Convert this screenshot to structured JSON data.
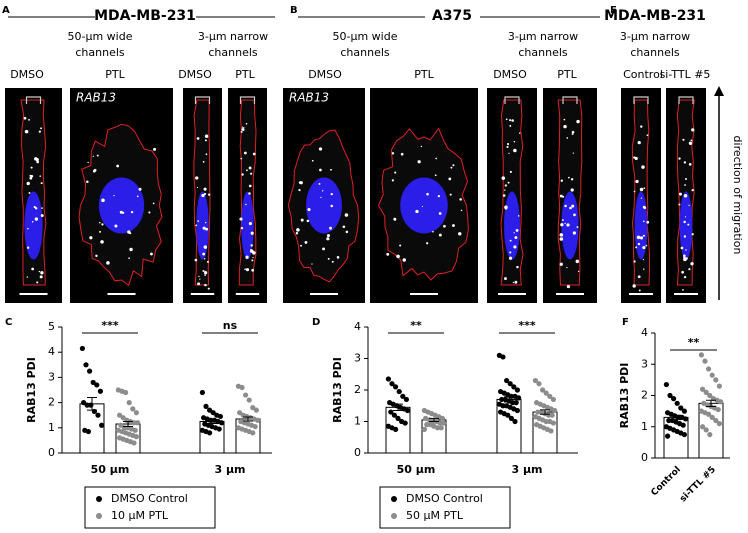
{
  "panels": [
    {
      "letter": "A",
      "title": "MDA-MB-231",
      "gene": "RAB13",
      "subtitles": [
        [
          "50-µm wide",
          "channels"
        ],
        [
          "3-µm narrow",
          "channels"
        ]
      ],
      "labels": [
        "DMSO",
        "PTL",
        "DMSO",
        "PTL"
      ]
    },
    {
      "letter": "B",
      "title": "A375",
      "gene": "RAB13",
      "subtitles": [
        [
          "50-µm wide",
          "channels"
        ],
        [
          "3-µm narrow",
          "channels"
        ]
      ],
      "labels": [
        "DMSO",
        "PTL",
        "DMSO",
        "PTL"
      ]
    },
    {
      "letter": "E",
      "title": "MDA-MB-231",
      "subtitles": [
        [
          "3-µm narrow",
          "channels"
        ]
      ],
      "labels": [
        "Control",
        "si-TTL #5"
      ],
      "arrow_label": "direction of migration"
    }
  ],
  "chart_data": [
    {
      "type": "bar",
      "letter": "C",
      "ylabel": "RAB13 PDI",
      "categories": [
        "50 µm",
        "3 µm"
      ],
      "ylim": [
        0,
        5
      ],
      "yticks": [
        0,
        1,
        2,
        3,
        4,
        5
      ],
      "significance": [
        "***",
        "ns"
      ],
      "series": [
        {
          "name": "DMSO Control",
          "color": "#000000",
          "values": [
            1.95,
            1.25
          ],
          "errors": [
            0.25,
            0.08
          ],
          "points": [
            [
              4.15,
              3.5,
              3.25,
              2.8,
              2.7,
              2.45,
              2.0,
              1.9,
              1.9,
              1.65,
              1.5,
              1.1,
              0.9,
              0.85
            ],
            [
              2.4,
              1.85,
              1.7,
              1.6,
              1.5,
              1.45,
              1.4,
              1.35,
              1.3,
              1.3,
              1.25,
              1.2,
              1.15,
              1.1,
              1.05,
              1.0,
              0.95,
              0.9,
              0.85,
              0.8
            ]
          ]
        },
        {
          "name": "10 µM PTL",
          "color": "#8c8c8c",
          "values": [
            1.15,
            1.35
          ],
          "errors": [
            0.1,
            0.08
          ],
          "points": [
            [
              2.5,
              2.45,
              2.4,
              2.0,
              1.75,
              1.6,
              1.5,
              1.4,
              1.3,
              1.25,
              1.2,
              1.2,
              1.1,
              1.0,
              1.0,
              0.95,
              0.9,
              0.9,
              0.85,
              0.8,
              0.75,
              0.7,
              0.65,
              0.6,
              0.55,
              0.5,
              0.45,
              0.4
            ],
            [
              2.65,
              2.6,
              2.3,
              2.1,
              1.8,
              1.7,
              1.6,
              1.5,
              1.45,
              1.4,
              1.35,
              1.3,
              1.25,
              1.2,
              1.15,
              1.1,
              1.05,
              1.0,
              0.95,
              0.9,
              0.85,
              0.8
            ]
          ]
        }
      ]
    },
    {
      "type": "bar",
      "letter": "D",
      "ylabel": "RAB13 PDI",
      "categories": [
        "50 µm",
        "3 µm"
      ],
      "ylim": [
        0,
        4
      ],
      "yticks": [
        0,
        1,
        2,
        3,
        4
      ],
      "significance": [
        "**",
        "***"
      ],
      "series": [
        {
          "name": "DMSO Control",
          "color": "#000000",
          "values": [
            1.45,
            1.7
          ],
          "errors": [
            0.1,
            0.08
          ],
          "points": [
            [
              2.35,
              2.2,
              2.1,
              1.95,
              1.8,
              1.7,
              1.6,
              1.55,
              1.5,
              1.45,
              1.4,
              1.35,
              1.3,
              1.2,
              1.1,
              1.0,
              0.95,
              0.85,
              0.8,
              0.75
            ],
            [
              3.1,
              3.05,
              2.3,
              2.2,
              2.1,
              2.0,
              1.95,
              1.9,
              1.85,
              1.8,
              1.8,
              1.75,
              1.7,
              1.7,
              1.65,
              1.6,
              1.6,
              1.55,
              1.5,
              1.5,
              1.45,
              1.4,
              1.35,
              1.3,
              1.25,
              1.2,
              1.1,
              1.0
            ]
          ]
        },
        {
          "name": "50 µM PTL",
          "color": "#8c8c8c",
          "values": [
            1.05,
            1.3
          ],
          "errors": [
            0.05,
            0.07
          ],
          "points": [
            [
              1.35,
              1.3,
              1.25,
              1.2,
              1.15,
              1.1,
              1.1,
              1.05,
              1.0,
              1.0,
              0.95,
              0.95,
              0.9,
              0.9,
              0.85,
              0.8,
              0.8,
              0.75
            ],
            [
              2.3,
              2.2,
              2.0,
              1.9,
              1.8,
              1.7,
              1.6,
              1.55,
              1.5,
              1.45,
              1.4,
              1.35,
              1.3,
              1.3,
              1.25,
              1.2,
              1.2,
              1.15,
              1.1,
              1.05,
              1.0,
              1.0,
              0.95,
              0.9,
              0.85,
              0.8,
              0.75,
              0.7
            ]
          ]
        }
      ]
    },
    {
      "type": "bar",
      "letter": "F",
      "ylabel": "RAB13 PDI",
      "categories": [
        "Control",
        "si-TTL #5"
      ],
      "ylim": [
        0,
        4
      ],
      "yticks": [
        0,
        1,
        2,
        3,
        4
      ],
      "significance": [
        "**"
      ],
      "colors": [
        "#000000",
        "#8c8c8c"
      ],
      "values": [
        1.3,
        1.75
      ],
      "errors": [
        0.07,
        0.1
      ],
      "points": [
        [
          2.35,
          2.0,
          1.9,
          1.75,
          1.6,
          1.5,
          1.45,
          1.4,
          1.35,
          1.3,
          1.3,
          1.25,
          1.2,
          1.2,
          1.15,
          1.1,
          1.05,
          1.0,
          0.95,
          0.9,
          0.85,
          0.8,
          0.75,
          0.7
        ],
        [
          3.3,
          3.1,
          2.85,
          2.65,
          2.5,
          2.3,
          2.2,
          2.1,
          2.0,
          1.9,
          1.85,
          1.8,
          1.75,
          1.7,
          1.65,
          1.6,
          1.55,
          1.5,
          1.45,
          1.4,
          1.3,
          1.2,
          1.1,
          1.0,
          0.9,
          0.75
        ]
      ]
    }
  ]
}
